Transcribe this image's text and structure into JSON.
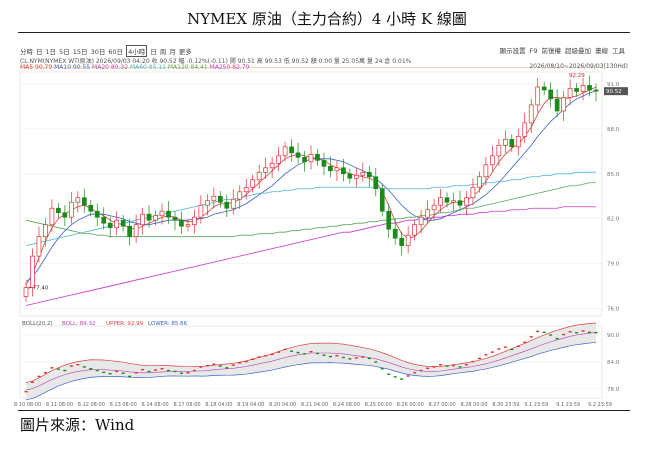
{
  "title": "NYMEX 原油（主力合約）4 小時 K 線圖",
  "footer": "圖片來源：Wind",
  "toolbar": {
    "periods": [
      "分時",
      "日",
      "1日",
      "5日",
      "15日",
      "30日",
      "60日",
      "4小時",
      "日",
      "周",
      "月",
      "更多"
    ],
    "active_period": "4小時",
    "tools": [
      "顯示設置",
      "F9",
      "前復權",
      "超級疊加",
      "畫線",
      "工具"
    ]
  },
  "info": {
    "line": "CL.NYM(NYMEX WTI原油)  2026/09/03 04:20  收 90.52  幅 -0.12%(-0.11)  開 90.51  高 90.53  低 90.52  額 0.00  量 25.05萬  量 24  倉 0.01%",
    "range": "2026/08/10~2026/09/03(130Hd)"
  },
  "ma": {
    "ma5": "MA5 90.79",
    "ma10": "MA10 90.55",
    "ma20": "MA20 89.32",
    "ma60": "MA60 85.11",
    "ma120": "MA120 84.41",
    "ma250": "MA250 82.79",
    "colors": {
      "ma5": "#d94040",
      "ma10": "#3a63c8",
      "ma20": "#b044b0",
      "ma60": "#4bb3d8",
      "ma120": "#5aa85a",
      "ma250": "#cc33cc"
    }
  },
  "boll": {
    "label": "BOLL(20,2)",
    "boll": "BOLL: 89.32",
    "upper": "UPPER: 92.99",
    "lower": "LOWER: 85.66",
    "yticks": [
      90.0,
      84.0,
      78.0
    ]
  },
  "chart_data": {
    "type": "candlestick",
    "yticks": [
      91.0,
      88.0,
      85.0,
      82.0,
      79.0,
      76.0
    ],
    "ylim": [
      75.5,
      91.8
    ],
    "high_mark": "92.29",
    "low_mark": "77.40",
    "last_price": "90.52",
    "xlabels": [
      "8.10 08:00",
      "8.11 08:00",
      "8.12 08:00",
      "8.13 08:00",
      "8.14 08:00",
      "8.17 08:00",
      "8.18 04:00",
      "8.19 04:00",
      "8.20 04:00",
      "8.21 04:00",
      "8.24 08:00",
      "8.25 00:00",
      "8.26 00:00",
      "8.27 00:00",
      "8.28 00:00",
      "8.30 23:59",
      "9.1 23:59",
      "9.1 23:59",
      "9.2 23:59"
    ],
    "closes": [
      77.4,
      79.5,
      80.8,
      81.6,
      82.7,
      82.4,
      82.1,
      83.1,
      83.4,
      82.9,
      82.5,
      82.1,
      81.7,
      81.4,
      81.9,
      81.5,
      80.8,
      81.6,
      82.3,
      81.9,
      82.2,
      82.5,
      82.1,
      81.9,
      81.5,
      81.6,
      82.1,
      82.9,
      83.2,
      83.5,
      83.1,
      82.7,
      83.3,
      83.8,
      84.1,
      84.6,
      85.1,
      85.4,
      85.7,
      86.2,
      86.8,
      86.4,
      86.1,
      85.8,
      86.3,
      85.9,
      85.5,
      85.2,
      85.4,
      85.0,
      84.7,
      84.9,
      85.1,
      84.8,
      84.0,
      82.5,
      81.3,
      80.7,
      80.2,
      80.9,
      81.6,
      82.1,
      82.6,
      82.9,
      83.4,
      83.1,
      83.2,
      82.9,
      83.4,
      84.1,
      84.8,
      85.6,
      86.2,
      86.9,
      87.3,
      86.8,
      87.5,
      88.4,
      89.6,
      90.8,
      90.6,
      90.0,
      89.2,
      90.1,
      90.7,
      90.5,
      90.9,
      90.6,
      90.52
    ],
    "ma_series": {
      "ma5": [
        77.6,
        78.3,
        79.4,
        80.5,
        81.4,
        82.0,
        82.3,
        82.6,
        82.8,
        82.9,
        82.7,
        82.4,
        82.2,
        81.9,
        81.7,
        81.6,
        81.4,
        81.3,
        81.5,
        81.7,
        81.9,
        82.1,
        82.2,
        82.1,
        81.9,
        81.8,
        81.8,
        82.1,
        82.4,
        82.8,
        83.0,
        83.0,
        83.1,
        83.3,
        83.6,
        84.0,
        84.4,
        84.8,
        85.2,
        85.6,
        86.0,
        86.2,
        86.3,
        86.2,
        86.1,
        86.0,
        85.9,
        85.6,
        85.4,
        85.2,
        85.0,
        84.9,
        84.8,
        84.7,
        84.5,
        83.8,
        82.9,
        81.8,
        81.0,
        80.7,
        80.8,
        81.2,
        81.7,
        82.2,
        82.6,
        82.9,
        83.1,
        83.1,
        83.2,
        83.5,
        83.9,
        84.5,
        85.1,
        85.8,
        86.3,
        86.7,
        87.0,
        87.5,
        88.1,
        89.0,
        89.7,
        90.1,
        90.1,
        90.0,
        90.1,
        90.2,
        90.4,
        90.6,
        90.79
      ],
      "ma10": [
        77.8,
        78.1,
        78.7,
        79.4,
        80.1,
        80.7,
        81.2,
        81.6,
        81.9,
        82.1,
        82.3,
        82.3,
        82.3,
        82.2,
        82.1,
        82.0,
        81.8,
        81.7,
        81.6,
        81.6,
        81.7,
        81.8,
        81.9,
        81.9,
        81.9,
        81.9,
        82.0,
        82.0,
        82.1,
        82.3,
        82.4,
        82.5,
        82.6,
        82.8,
        83.0,
        83.3,
        83.6,
        83.9,
        84.2,
        84.6,
        85.0,
        85.3,
        85.6,
        85.8,
        86.0,
        86.0,
        86.0,
        86.0,
        85.9,
        85.8,
        85.6,
        85.4,
        85.2,
        85.0,
        84.7,
        84.3,
        83.9,
        83.4,
        82.9,
        82.5,
        82.2,
        82.0,
        81.9,
        81.9,
        82.0,
        82.2,
        82.4,
        82.6,
        82.8,
        83.0,
        83.3,
        83.6,
        84.0,
        84.4,
        84.9,
        85.4,
        85.9,
        86.4,
        86.9,
        87.5,
        88.0,
        88.5,
        88.9,
        89.3,
        89.7,
        90.0,
        90.2,
        90.4,
        90.55
      ],
      "ma60": [
        80.2,
        80.3,
        80.4,
        80.5,
        80.6,
        80.7,
        80.8,
        80.9,
        81.0,
        81.1,
        81.2,
        81.3,
        81.4,
        81.5,
        81.6,
        81.7,
        81.8,
        81.9,
        82.0,
        82.1,
        82.2,
        82.3,
        82.4,
        82.5,
        82.6,
        82.7,
        82.8,
        82.9,
        83.0,
        83.1,
        83.2,
        83.3,
        83.3,
        83.4,
        83.5,
        83.6,
        83.7,
        83.7,
        83.8,
        83.8,
        83.9,
        83.9,
        84.0,
        84.0,
        84.0,
        84.1,
        84.1,
        84.1,
        84.1,
        84.1,
        84.1,
        84.1,
        84.1,
        84.1,
        84.1,
        84.0,
        84.0,
        84.0,
        84.0,
        84.0,
        84.0,
        84.0,
        84.0,
        84.1,
        84.1,
        84.1,
        84.2,
        84.2,
        84.2,
        84.3,
        84.3,
        84.4,
        84.4,
        84.5,
        84.5,
        84.6,
        84.6,
        84.7,
        84.8,
        84.8,
        84.9,
        84.9,
        85.0,
        85.0,
        85.0,
        85.1,
        85.1,
        85.1,
        85.11
      ],
      "ma120": [
        81.9,
        81.8,
        81.7,
        81.6,
        81.5,
        81.4,
        81.3,
        81.2,
        81.1,
        81.0,
        81.0,
        80.9,
        80.9,
        80.8,
        80.8,
        80.8,
        80.8,
        80.8,
        80.8,
        80.8,
        80.8,
        80.8,
        80.8,
        80.8,
        80.8,
        80.8,
        80.8,
        80.8,
        80.8,
        80.8,
        80.8,
        80.8,
        80.8,
        80.9,
        80.9,
        80.9,
        81.0,
        81.0,
        81.0,
        81.1,
        81.1,
        81.2,
        81.2,
        81.3,
        81.3,
        81.4,
        81.4,
        81.5,
        81.5,
        81.6,
        81.6,
        81.7,
        81.7,
        81.8,
        81.8,
        81.9,
        81.9,
        82.0,
        82.0,
        82.1,
        82.1,
        82.2,
        82.2,
        82.3,
        82.4,
        82.4,
        82.5,
        82.6,
        82.7,
        82.7,
        82.8,
        82.9,
        83.0,
        83.1,
        83.2,
        83.3,
        83.4,
        83.5,
        83.6,
        83.7,
        83.8,
        83.9,
        84.0,
        84.1,
        84.2,
        84.2,
        84.3,
        84.4,
        84.41
      ],
      "ma250": [
        76.2,
        76.3,
        76.4,
        76.5,
        76.6,
        76.7,
        76.8,
        76.9,
        77.0,
        77.1,
        77.2,
        77.3,
        77.4,
        77.5,
        77.6,
        77.7,
        77.8,
        77.9,
        78.0,
        78.1,
        78.2,
        78.3,
        78.4,
        78.5,
        78.6,
        78.7,
        78.8,
        78.9,
        79.0,
        79.1,
        79.2,
        79.3,
        79.4,
        79.5,
        79.6,
        79.7,
        79.8,
        79.9,
        80.0,
        80.1,
        80.2,
        80.3,
        80.4,
        80.5,
        80.6,
        80.7,
        80.8,
        80.9,
        81.0,
        81.1,
        81.1,
        81.2,
        81.3,
        81.4,
        81.5,
        81.6,
        81.7,
        81.7,
        81.8,
        81.9,
        81.9,
        82.0,
        82.0,
        82.1,
        82.1,
        82.2,
        82.2,
        82.3,
        82.3,
        82.3,
        82.4,
        82.4,
        82.5,
        82.5,
        82.5,
        82.6,
        82.6,
        82.6,
        82.7,
        82.7,
        82.7,
        82.7,
        82.7,
        82.8,
        82.8,
        82.8,
        82.8,
        82.8,
        82.79
      ]
    }
  }
}
